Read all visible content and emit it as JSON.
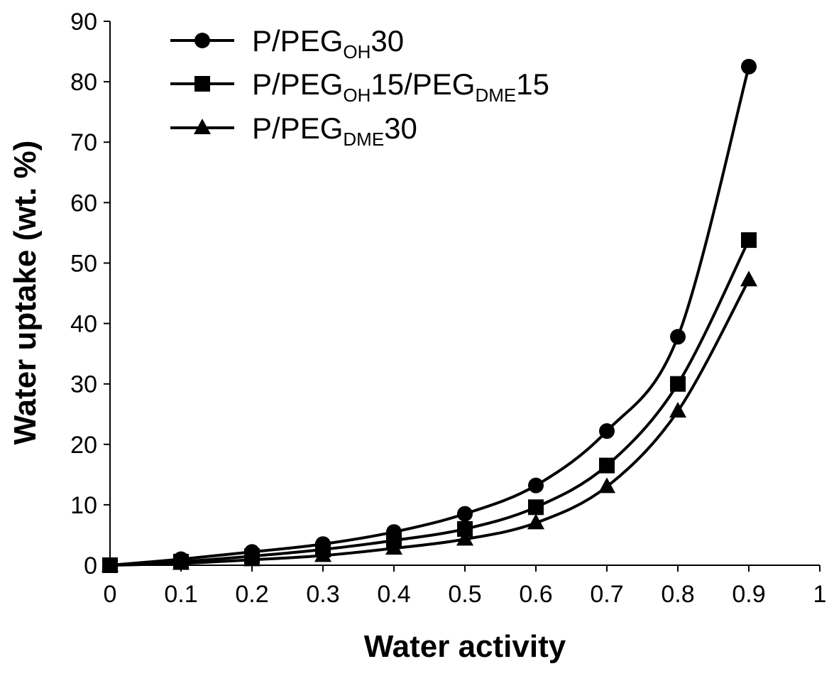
{
  "chart_data": {
    "type": "line",
    "xlabel": "Water activity",
    "ylabel": "Water uptake (wt. %)",
    "xlim": [
      0,
      1
    ],
    "ylim": [
      0,
      90
    ],
    "x_ticks": [
      "0",
      "0.1",
      "0.2",
      "0.3",
      "0.4",
      "0.5",
      "0.6",
      "0.7",
      "0.8",
      "0.9",
      "1"
    ],
    "y_ticks": [
      "0",
      "10",
      "20",
      "30",
      "40",
      "50",
      "60",
      "70",
      "80",
      "90"
    ],
    "x": [
      0,
      0.1,
      0.2,
      0.3,
      0.4,
      0.5,
      0.6,
      0.7,
      0.8,
      0.9
    ],
    "legend_position": "top-left",
    "grid": false,
    "series": [
      {
        "name": "P/PEG_OH30",
        "label_main": "P/PEG",
        "label_sub": "OH",
        "label_tail": "30",
        "marker": "circle",
        "values": [
          0,
          1.0,
          2.2,
          3.5,
          5.5,
          8.5,
          13.2,
          22.2,
          37.8,
          82.5
        ]
      },
      {
        "name": "P/PEG_OH15/PEG_DME15",
        "label_main": "P/PEG",
        "label_sub": "OH",
        "label_mid": "15/PEG",
        "label_sub2": "DME",
        "label_tail": "15",
        "marker": "square",
        "values": [
          0,
          0.6,
          1.5,
          2.6,
          4.1,
          6.0,
          9.6,
          16.5,
          30.0,
          53.8
        ]
      },
      {
        "name": "P/PEG_DME30",
        "label_main": "P/PEG",
        "label_sub": "DME",
        "label_tail": "30",
        "marker": "triangle",
        "values": [
          0,
          0.3,
          0.9,
          1.6,
          2.8,
          4.3,
          7.0,
          13.0,
          25.5,
          47.2
        ]
      }
    ]
  }
}
